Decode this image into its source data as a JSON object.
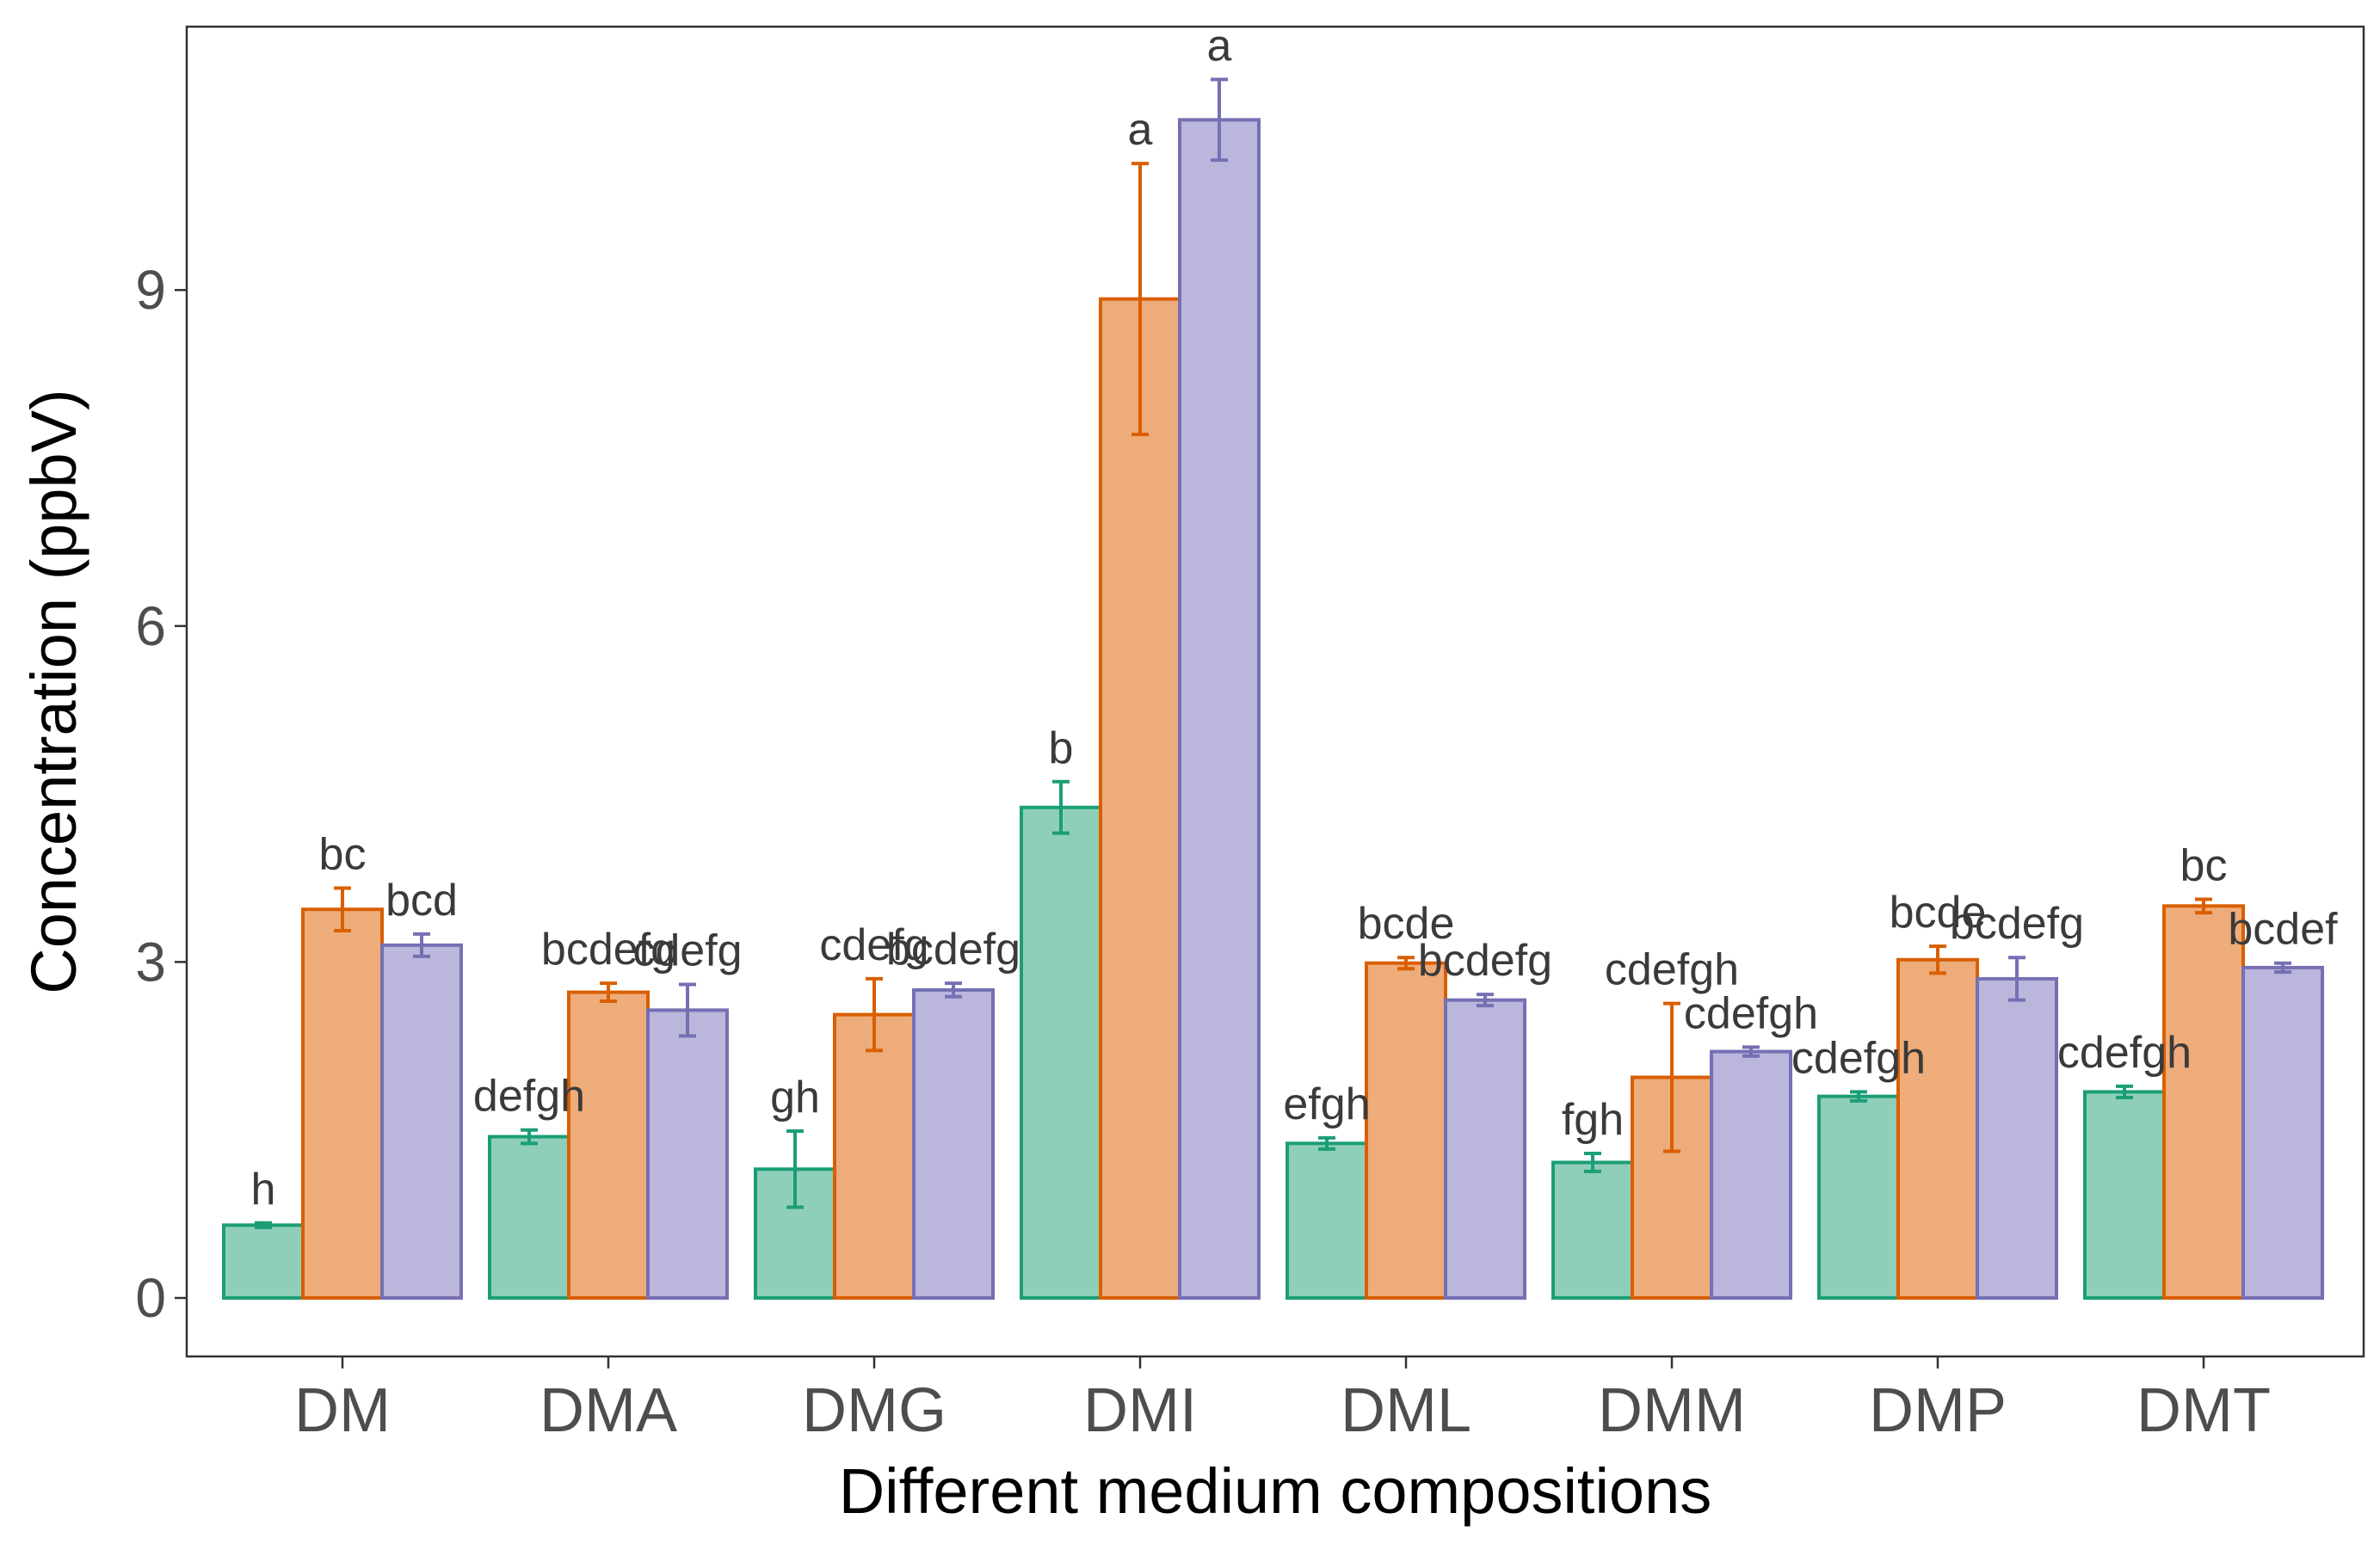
{
  "chart_data": {
    "type": "bar",
    "title": "",
    "xlabel": "Different medium compositions",
    "ylabel": "Concentration (ppbV)",
    "ylim": [
      -0.5,
      11.4
    ],
    "yticks": [
      0,
      3,
      6,
      9
    ],
    "ytick_labels": [
      "0",
      "3",
      "6",
      "9"
    ],
    "grid": false,
    "legend": "none",
    "categories": [
      "DM",
      "DMA",
      "DMG",
      "DMI",
      "DML",
      "DMM",
      "DMP",
      "DMT"
    ],
    "series": [
      {
        "name": "series-1",
        "fill": "#8fcfb9",
        "stroke": "#1b9e77",
        "values": [
          0.65,
          1.44,
          1.15,
          4.38,
          1.38,
          1.21,
          1.8,
          1.84
        ],
        "errors": [
          0.02,
          0.06,
          0.34,
          0.23,
          0.05,
          0.08,
          0.04,
          0.05
        ],
        "labels": [
          "h",
          "defgh",
          "gh",
          "b",
          "efgh",
          "fgh",
          "cdefgh",
          "cdefgh"
        ]
      },
      {
        "name": "series-2",
        "fill": "#eeac7a",
        "stroke": "#d95f02",
        "values": [
          3.47,
          2.73,
          2.53,
          8.92,
          2.99,
          1.97,
          3.02,
          3.5
        ],
        "errors": [
          0.19,
          0.08,
          0.32,
          1.21,
          0.05,
          0.66,
          0.12,
          0.06
        ],
        "labels": [
          "bc",
          "bcdefg",
          "cdefg",
          "a",
          "bcde",
          "cdefgh",
          "bcde",
          "bc"
        ]
      },
      {
        "name": "series-3",
        "fill": "#bbb6db",
        "stroke": "#7570b3",
        "values": [
          3.15,
          2.57,
          2.75,
          10.52,
          2.66,
          2.2,
          2.85,
          2.95
        ],
        "errors": [
          0.1,
          0.23,
          0.06,
          0.36,
          0.05,
          0.04,
          0.19,
          0.04
        ],
        "labels": [
          "bcd",
          "cdefg",
          "bcdefg",
          "a",
          "bcdefg",
          "cdefgh",
          "bcdefg",
          "bcdef"
        ]
      }
    ]
  }
}
